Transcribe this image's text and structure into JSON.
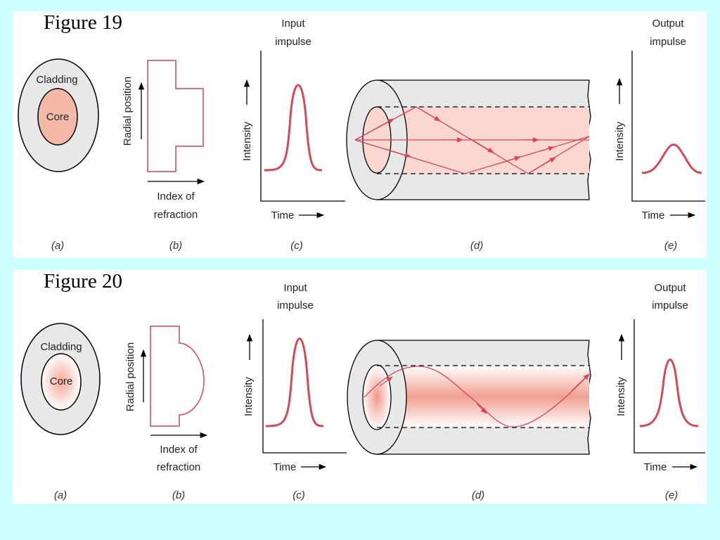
{
  "figures": [
    {
      "title": "Figure 19",
      "cladding_label": "Cladding",
      "core_label": "Core",
      "radial_axis_label": "Radial position",
      "index_label_line1": "Index of",
      "index_label_line2": "refraction",
      "input_title_line1": "Input",
      "input_title_line2": "impulse",
      "output_title_line1": "Output",
      "output_title_line2": "impulse",
      "intensity_label": "Intensity",
      "time_label": "Time",
      "captions": [
        "(a)",
        "(b)",
        "(c)",
        "(d)",
        "(e)"
      ]
    },
    {
      "title": "Figure 20",
      "cladding_label": "Cladding",
      "core_label": "Core",
      "radial_axis_label": "Radial position",
      "index_label_line1": "Index of",
      "index_label_line2": "refraction",
      "input_title_line1": "Input",
      "input_title_line2": "impulse",
      "output_title_line1": "Output",
      "output_title_line2": "impulse",
      "intensity_label": "Intensity",
      "time_label": "Time",
      "captions": [
        "(a)",
        "(b)",
        "(c)",
        "(d)",
        "(e)"
      ]
    }
  ],
  "colors": {
    "background": "#ccffff",
    "cladding": "#e8e8e8",
    "core": "#f4b8a8",
    "ray": "#d9435a",
    "pulse": "#d04a58"
  }
}
